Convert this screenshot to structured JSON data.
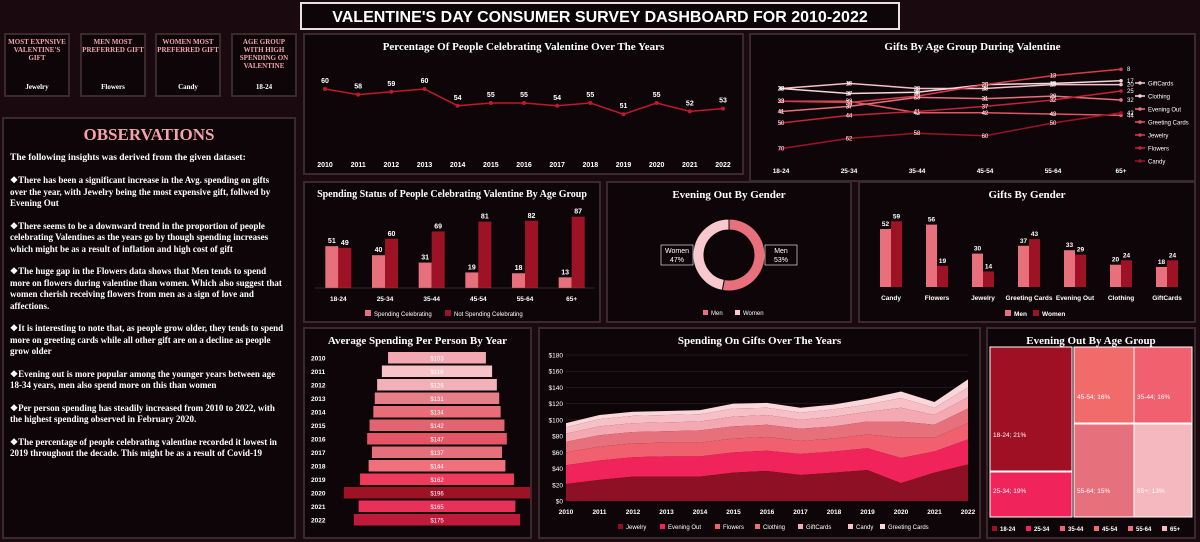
{
  "title": "VALENTINE'S DAY CONSUMER SURVEY DASHBOARD FOR 2010-2022",
  "kpis": [
    {
      "label": "MOST EXPNSIVE VALENTINE'S GIFT",
      "value": "Jewelry"
    },
    {
      "label": "MEN MOST PREFERRED GIFT",
      "value": "Flowers"
    },
    {
      "label": "WOMEN MOST PREFERRED GIFT",
      "value": "Candy"
    },
    {
      "label": "AGE GROUP WITH HIGH SPENDING ON VALENTINE",
      "value": "18-24"
    }
  ],
  "observations": {
    "title": "OBSERVATIONS",
    "intro": "The following insights was derived from the given dataset:",
    "items": [
      "There has been a significant increase in the Avg. spending on gifts over the year, with Jewelry being the most expensive gift, follwed by Evening Out",
      "There seems to be a downward trend in the proportion of people celebrating  Valentines as the years go by though spending increases which might be as a result of inflation and high cost of gift",
      "The huge gap in the Flowers data shows that Men tends to spend more on flowers during valentine than women. Which also suggest that women cherish receiving flowers from men as a sign of love and affections.",
      "It is interesting to note that, as people grow older, they tends to spend more on greeting cards while all other gift are on a decline as people grow older",
      "Evening out is more popular  among the younger years between age 18-34 years, men also  spend more on this than women",
      "Per person spending has steadily increased from 2010 to 2022, with the highest spending observed in February 2020.",
      "The percentage of people celebrating valentine recorded it lowest in 2019 throughout the decade. This might be as a result of Covid-19"
    ]
  },
  "chart_data": [
    {
      "id": "celebrating",
      "type": "line",
      "title": "Percentage Of People Celebrating Valentine Over The Years",
      "categories": [
        "2010",
        "2011",
        "2012",
        "2013",
        "2014",
        "2015",
        "2016",
        "2017",
        "2018",
        "2019",
        "2020",
        "2021",
        "2022"
      ],
      "values": [
        60,
        58,
        59,
        60,
        54,
        55,
        55,
        54,
        55,
        51,
        55,
        52,
        53
      ],
      "color": "#c0182e"
    },
    {
      "id": "gifts_by_age",
      "type": "line",
      "title": "Gifts By Age Group During Valentine",
      "categories": [
        "18-24",
        "25-34",
        "35-44",
        "45-54",
        "55-64",
        "65+"
      ],
      "series": [
        {
          "name": "GiftCards",
          "values": [
            23,
            19,
            23,
            23,
            20,
            20
          ],
          "color": "#f4c0c6"
        },
        {
          "name": "Clothing",
          "values": [
            23,
            27,
            26,
            20,
            19,
            17
          ],
          "color": "#f7d6da"
        },
        {
          "name": "Evening Out",
          "values": [
            41,
            37,
            30,
            31,
            29,
            32
          ],
          "color": "#e8707c"
        },
        {
          "name": "Greeting Cards",
          "values": [
            33,
            33,
            42,
            42,
            43,
            44
          ],
          "color": "#e15563"
        },
        {
          "name": "Jewelry",
          "values": [
            33,
            34,
            29,
            20,
            13,
            8
          ],
          "color": "#d43c4c"
        },
        {
          "name": "Flowers",
          "values": [
            50,
            44,
            41,
            37,
            32,
            25
          ],
          "color": "#c22538"
        },
        {
          "name": "Candy",
          "values": [
            70,
            62,
            58,
            60,
            50,
            42
          ],
          "color": "#9e1226"
        }
      ]
    },
    {
      "id": "spending_status",
      "type": "bar",
      "title": "Spending Status of People Celebrating Valentine By Age Group",
      "categories": [
        "18-24",
        "25-34",
        "35-44",
        "45-54",
        "55-64",
        "65+"
      ],
      "series": [
        {
          "name": "Spending Celebrating",
          "values": [
            51,
            40,
            31,
            19,
            18,
            13
          ],
          "color": "#e8707c"
        },
        {
          "name": "Not Spending Celebrating",
          "values": [
            49,
            60,
            69,
            81,
            82,
            87
          ],
          "color": "#9e1226"
        }
      ],
      "ylim": [
        0,
        100
      ]
    },
    {
      "id": "evening_gender",
      "type": "pie",
      "title": "Evening Out By Gender",
      "slices": [
        {
          "label": "Men",
          "value": 53,
          "color": "#e8707c"
        },
        {
          "label": "Women",
          "value": 47,
          "color": "#f7c9ce"
        }
      ]
    },
    {
      "id": "gifts_gender",
      "type": "bar",
      "title": "Gifts By Gender",
      "categories": [
        "Candy",
        "Flowers",
        "Jewelry",
        "Greeting Cards",
        "Evening Out",
        "Clothing",
        "GiftCards"
      ],
      "series": [
        {
          "name": "Men",
          "values": [
            52,
            56,
            30,
            37,
            33,
            20,
            18
          ],
          "color": "#e8707c"
        },
        {
          "name": "Women",
          "values": [
            59,
            19,
            14,
            43,
            29,
            24,
            24
          ],
          "color": "#9e1226"
        }
      ],
      "ylim": [
        0,
        70
      ]
    },
    {
      "id": "avg_spending",
      "type": "bar",
      "title": "Average Spending Per Person By Year",
      "categories": [
        "2010",
        "2011",
        "2012",
        "2013",
        "2014",
        "2015",
        "2016",
        "2017",
        "2018",
        "2019",
        "2020",
        "2021",
        "2022"
      ],
      "values": [
        103,
        116,
        126,
        131,
        134,
        142,
        147,
        137,
        144,
        162,
        196,
        165,
        175
      ],
      "labels": [
        "$103",
        "$116",
        "$126",
        "$131",
        "$134",
        "$142",
        "$147",
        "$137",
        "$144",
        "$162",
        "$196",
        "$165",
        "$175"
      ],
      "colors": [
        "#f4a9b2",
        "#f7c2c8",
        "#f2b0b8",
        "#e57f8a",
        "#e86d79",
        "#e36471",
        "#e45566",
        "#e4707c",
        "#f0707c",
        "#f03a5c",
        "#9e1226",
        "#e8315a",
        "#c01a3a"
      ]
    },
    {
      "id": "gifts_over_years",
      "type": "area",
      "title": "Spending On Gifts Over The Years",
      "categories": [
        "2010",
        "2011",
        "2012",
        "2013",
        "2014",
        "2015",
        "2016",
        "2017",
        "2018",
        "2019",
        "2020",
        "2021",
        "2022"
      ],
      "series": [
        {
          "name": "Jewelry",
          "values": [
            21,
            26,
            30,
            30,
            30,
            35,
            37,
            32,
            35,
            38,
            22,
            35,
            45
          ],
          "color": "#8e1024"
        },
        {
          "name": "Evening Out",
          "values": [
            23,
            24,
            24,
            25,
            25,
            25,
            25,
            26,
            26,
            27,
            31,
            26,
            31
          ],
          "color": "#f0245a"
        },
        {
          "name": "Flowers",
          "values": [
            16,
            17,
            17,
            17,
            17,
            17,
            17,
            16,
            16,
            17,
            25,
            17,
            20
          ],
          "color": "#f0606e"
        },
        {
          "name": "Clothing",
          "values": [
            13,
            14,
            14,
            14,
            15,
            15,
            15,
            15,
            15,
            16,
            20,
            16,
            18
          ],
          "color": "#e6707c"
        },
        {
          "name": "GiftCards",
          "values": [
            10,
            11,
            11,
            11,
            11,
            12,
            12,
            11,
            12,
            12,
            17,
            12,
            14
          ],
          "color": "#f4a8b2"
        },
        {
          "name": "Candy",
          "values": [
            8,
            9,
            9,
            9,
            9,
            10,
            9,
            9,
            9,
            9,
            12,
            9,
            12
          ],
          "color": "#f7bfc6"
        },
        {
          "name": "Greeting Cards",
          "values": [
            5,
            5,
            5,
            5,
            5,
            6,
            6,
            6,
            6,
            7,
            8,
            7,
            10
          ],
          "color": "#fbd6da"
        }
      ],
      "yticks": [
        "$0",
        "$20",
        "$40",
        "$60",
        "$80",
        "$100",
        "$120",
        "$140",
        "$160",
        "$180"
      ],
      "ylim": [
        0,
        180
      ]
    },
    {
      "id": "evening_age",
      "type": "heatmap",
      "title": "Evening Out By Age Group",
      "cells": [
        {
          "label": "18-24; 21%",
          "name": "18-24",
          "value": 21,
          "color": "#a01024"
        },
        {
          "label": "25-34; 19%",
          "name": "25-34",
          "value": 19,
          "color": "#f0245a"
        },
        {
          "label": "35-44; 16%",
          "name": "35-44",
          "value": 16,
          "color": "#f0606e"
        },
        {
          "label": "45-54; 16%",
          "name": "45-54",
          "value": 16,
          "color": "#f26b6b"
        },
        {
          "label": "55-64; 15%",
          "name": "55-64",
          "value": 15,
          "color": "#e6707c"
        },
        {
          "label": "65+; 13%",
          "name": "65+",
          "value": 13,
          "color": "#f4b8be"
        }
      ]
    }
  ]
}
